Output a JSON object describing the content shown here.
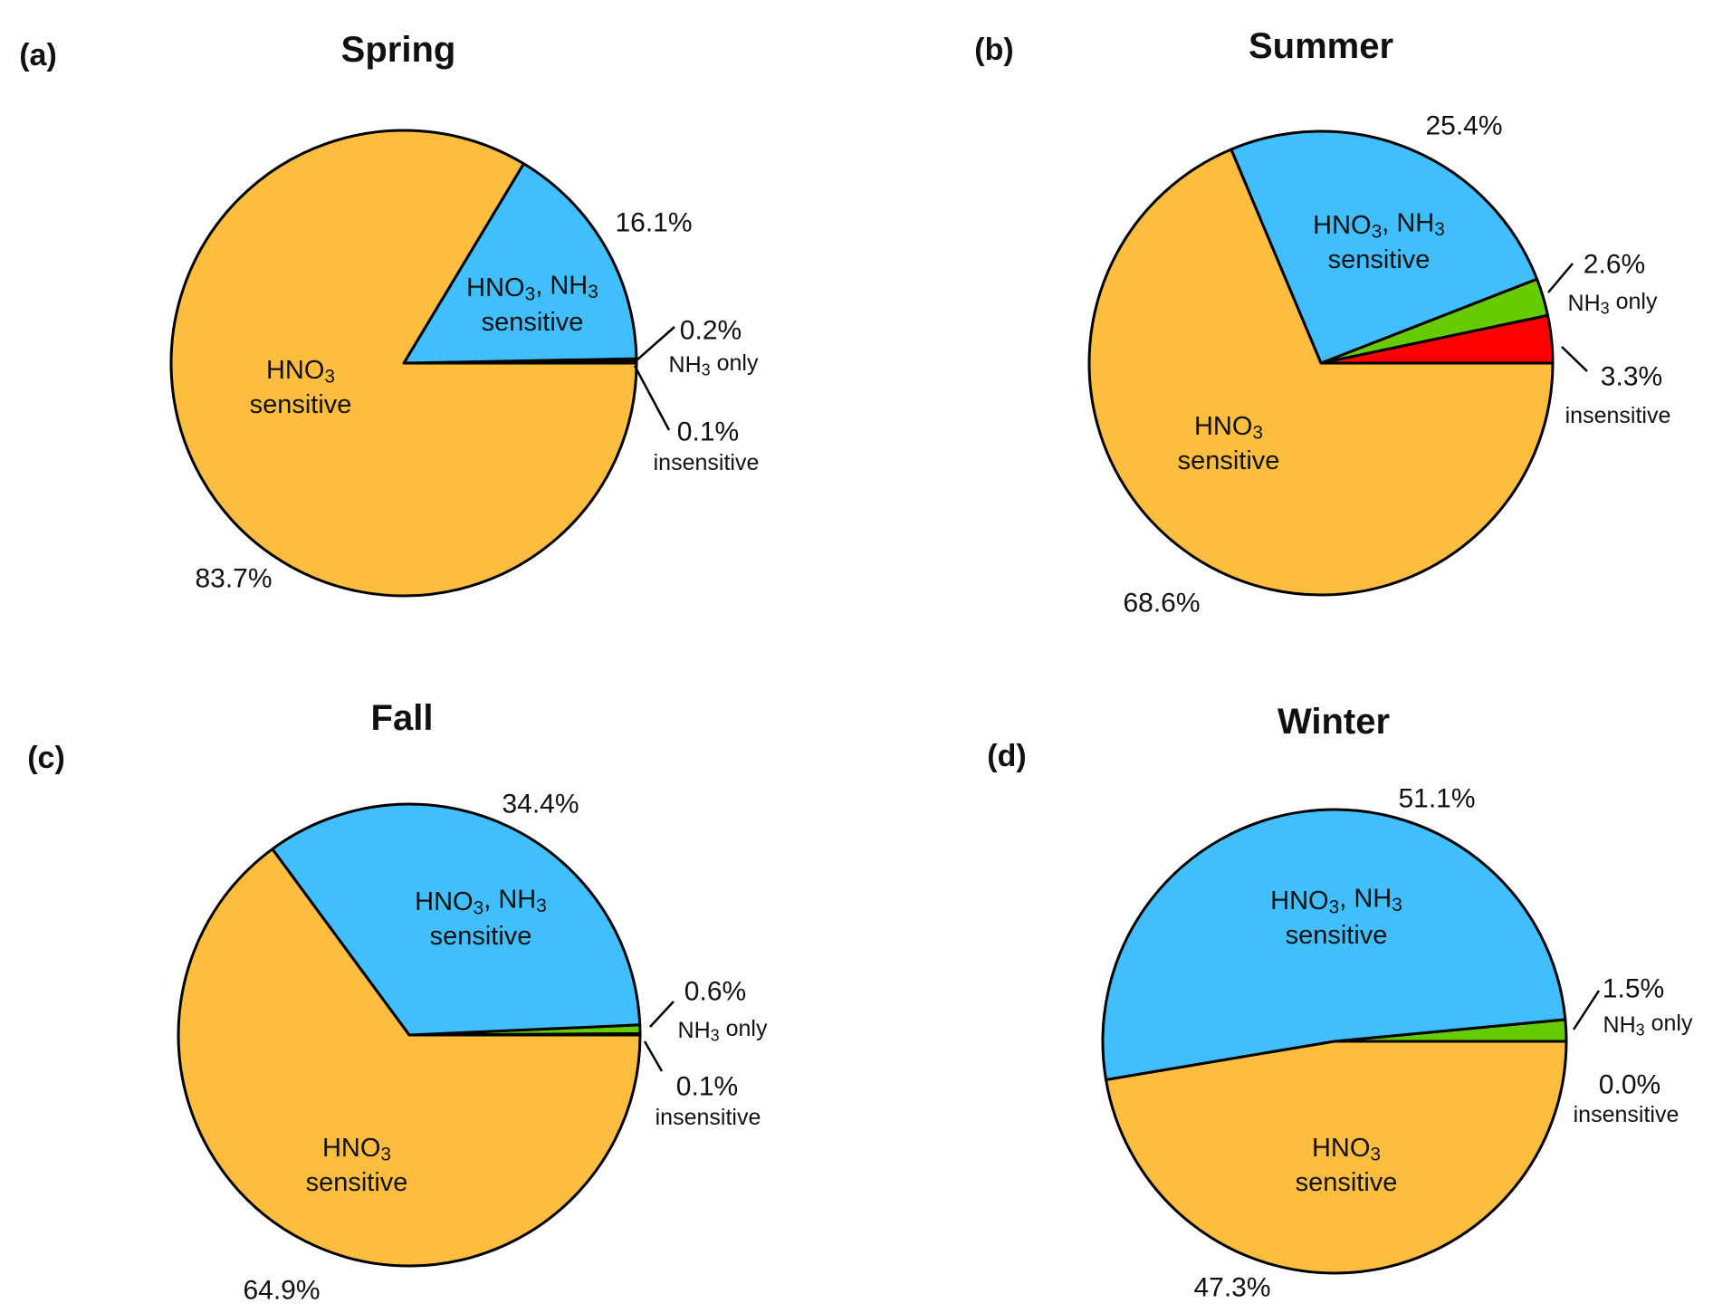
{
  "chart_data": [
    {
      "type": "pie",
      "panel": "(a)",
      "title": "Spring",
      "categories": [
        "insensitive",
        "NH3 only",
        "HNO3, NH3 sensitive",
        "HNO3 sensitive"
      ],
      "values": [
        0.1,
        0.2,
        16.1,
        83.7
      ],
      "value_labels": [
        "0.1%",
        "0.2%",
        "16.1%",
        "83.7%"
      ]
    },
    {
      "type": "pie",
      "panel": "(b)",
      "title": "Summer",
      "categories": [
        "insensitive",
        "NH3 only",
        "HNO3, NH3 sensitive",
        "HNO3 sensitive"
      ],
      "values": [
        3.3,
        2.6,
        25.4,
        68.6
      ],
      "value_labels": [
        "3.3%",
        "2.6%",
        "25.4%",
        "68.6%"
      ]
    },
    {
      "type": "pie",
      "panel": "(c)",
      "title": "Fall",
      "categories": [
        "insensitive",
        "NH3 only",
        "HNO3, NH3 sensitive",
        "HNO3 sensitive"
      ],
      "values": [
        0.1,
        0.6,
        34.4,
        64.9
      ],
      "value_labels": [
        "0.1%",
        "0.6%",
        "34.4%",
        "64.9%"
      ]
    },
    {
      "type": "pie",
      "panel": "(d)",
      "title": "Winter",
      "categories": [
        "insensitive",
        "NH3 only",
        "HNO3, NH3 sensitive",
        "HNO3 sensitive"
      ],
      "values": [
        0.0,
        1.5,
        51.1,
        47.3
      ],
      "value_labels": [
        "0.0%",
        "1.5%",
        "51.1%",
        "47.3%"
      ]
    }
  ],
  "slice_text": {
    "both_parts": [
      "HNO",
      "3",
      ", NH",
      "3"
    ],
    "hno3_parts": [
      "HNO",
      "3"
    ],
    "nh3_parts": [
      "NH",
      "3",
      " only"
    ],
    "sensitive": "sensitive",
    "insensitive": "insensitive"
  },
  "colors": {
    "insensitive": "#FF0000",
    "NH3 only": "#66CC00",
    "HNO3, NH3 sensitive": "#41BFFD",
    "HNO3 sensitive": "#FDBE3F",
    "outline": "#000000"
  }
}
